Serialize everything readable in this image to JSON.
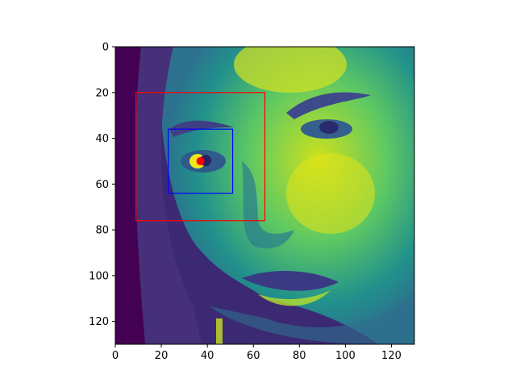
{
  "figure": {
    "x_ticks": [
      "0",
      "20",
      "40",
      "60",
      "80",
      "100",
      "120"
    ],
    "y_ticks": [
      "0",
      "20",
      "40",
      "60",
      "80",
      "100",
      "120"
    ],
    "x_tick_values": [
      0,
      20,
      40,
      60,
      80,
      100,
      120
    ],
    "y_tick_values": [
      0,
      20,
      40,
      60,
      80,
      100,
      120
    ],
    "xlim": [
      0,
      130
    ],
    "ylim": [
      130,
      0
    ],
    "image_description_colormap": "viridis",
    "overlays": {
      "red_box": {
        "x0": 9,
        "y0": 20,
        "x1": 65,
        "y1": 76,
        "color": "#ff0000"
      },
      "blue_box": {
        "x0": 23,
        "y0": 36,
        "x1": 51,
        "y1": 64,
        "color": "#0000ff"
      },
      "red_point": {
        "x": 37,
        "y": 50,
        "color": "#ff0000"
      }
    }
  }
}
